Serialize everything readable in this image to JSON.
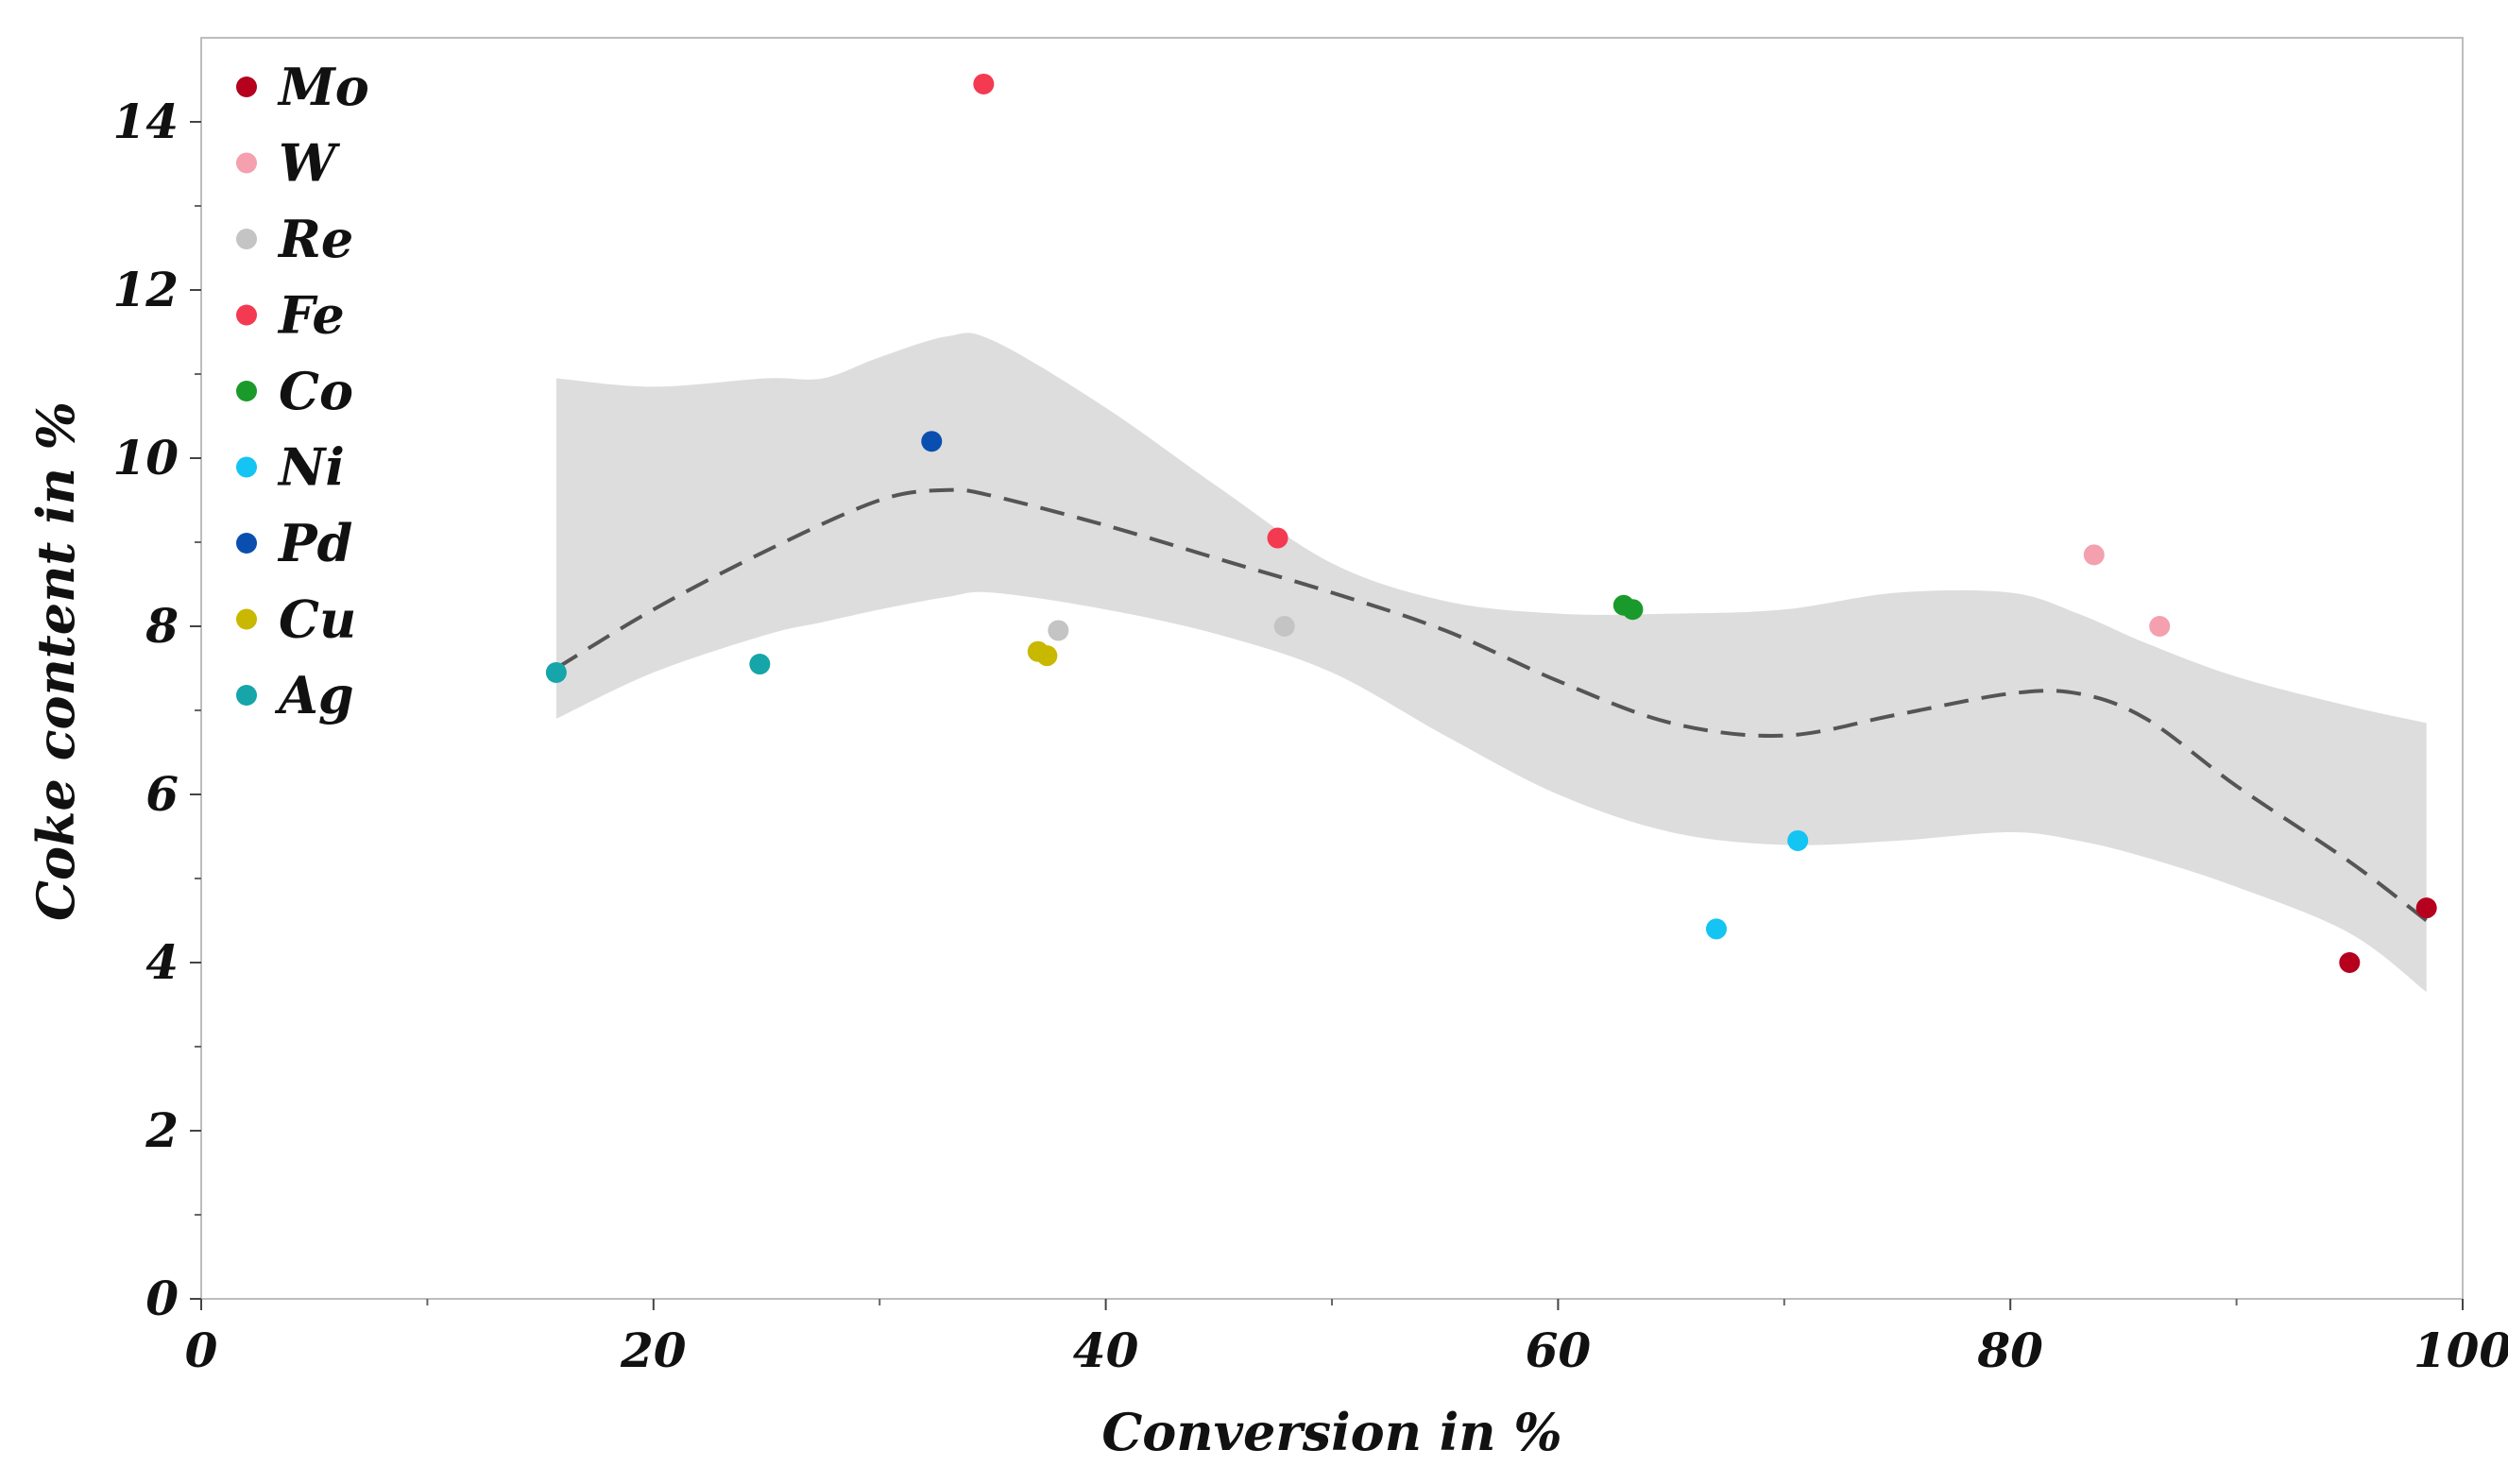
{
  "chart_data": {
    "type": "scatter",
    "xlabel": "Conversion in %",
    "ylabel": "Coke content in %",
    "xlim": [
      0,
      100
    ],
    "ylim": [
      0,
      15
    ],
    "x_major_ticks": [
      0,
      20,
      40,
      60,
      80,
      100
    ],
    "x_minor_ticks": [
      10,
      30,
      50,
      70,
      90
    ],
    "y_major_ticks": [
      0,
      2,
      4,
      6,
      8,
      10,
      12,
      14
    ],
    "y_minor_ticks": [
      1,
      3,
      5,
      7,
      9,
      11,
      13
    ],
    "x_tick_labels": [
      "0",
      "20",
      "40",
      "60",
      "80",
      "100"
    ],
    "y_tick_labels": [
      "0",
      "2",
      "4",
      "6",
      "8",
      "10",
      "12",
      "14"
    ],
    "legend_position": "top-left",
    "series": [
      {
        "name": "Mo",
        "color": "#b5001e",
        "points": [
          [
            95.0,
            4.0
          ],
          [
            98.4,
            4.65
          ]
        ]
      },
      {
        "name": "W",
        "color": "#f4a0ae",
        "points": [
          [
            83.7,
            8.85
          ],
          [
            86.6,
            8.0
          ]
        ]
      },
      {
        "name": "Re",
        "color": "#c4c4c4",
        "points": [
          [
            37.9,
            7.95
          ],
          [
            47.9,
            8.0
          ]
        ]
      },
      {
        "name": "Fe",
        "color": "#f33a50",
        "points": [
          [
            34.6,
            14.45
          ],
          [
            47.6,
            9.05
          ]
        ]
      },
      {
        "name": "Co",
        "color": "#1a9a2a",
        "points": [
          [
            62.9,
            8.25
          ],
          [
            63.3,
            8.2
          ]
        ]
      },
      {
        "name": "Ni",
        "color": "#14c4f2",
        "points": [
          [
            67.0,
            4.4
          ],
          [
            70.6,
            5.45
          ]
        ]
      },
      {
        "name": "Pd",
        "color": "#0a4fb0",
        "points": [
          [
            32.3,
            10.2
          ]
        ]
      },
      {
        "name": "Cu",
        "color": "#c8b800",
        "points": [
          [
            37.0,
            7.7
          ],
          [
            37.4,
            7.65
          ]
        ]
      },
      {
        "name": "Ag",
        "color": "#16a5a8",
        "points": [
          [
            15.7,
            7.45
          ],
          [
            24.7,
            7.55
          ]
        ]
      }
    ],
    "trend": {
      "name": "smoothed fit",
      "style": "dashed",
      "color": "#555555",
      "x": [
        15.7,
        20,
        25,
        30,
        33,
        35,
        40,
        45,
        50,
        55,
        60,
        65,
        70,
        75,
        80,
        83,
        86,
        90,
        95,
        98.4
      ],
      "y": [
        7.5,
        8.2,
        8.9,
        9.5,
        9.62,
        9.55,
        9.2,
        8.8,
        8.4,
        7.95,
        7.35,
        6.85,
        6.7,
        6.95,
        7.2,
        7.2,
        6.9,
        6.1,
        5.2,
        4.5
      ]
    },
    "confidence_band": {
      "color": "#dddddd",
      "x": [
        15.7,
        20,
        25,
        27.5,
        30,
        33,
        35,
        40,
        45,
        50,
        55,
        60,
        65,
        70,
        75,
        80,
        83,
        86,
        90,
        95,
        98.4
      ],
      "lower": [
        6.9,
        7.45,
        7.9,
        8.05,
        8.2,
        8.35,
        8.4,
        8.2,
        7.9,
        7.45,
        6.7,
        6.0,
        5.55,
        5.4,
        5.45,
        5.55,
        5.45,
        5.25,
        4.9,
        4.35,
        3.65
      ],
      "upper": [
        10.95,
        10.85,
        10.95,
        10.95,
        11.2,
        11.45,
        11.4,
        10.6,
        9.65,
        8.75,
        8.3,
        8.15,
        8.15,
        8.2,
        8.4,
        8.4,
        8.15,
        7.8,
        7.4,
        7.05,
        6.85
      ]
    }
  }
}
